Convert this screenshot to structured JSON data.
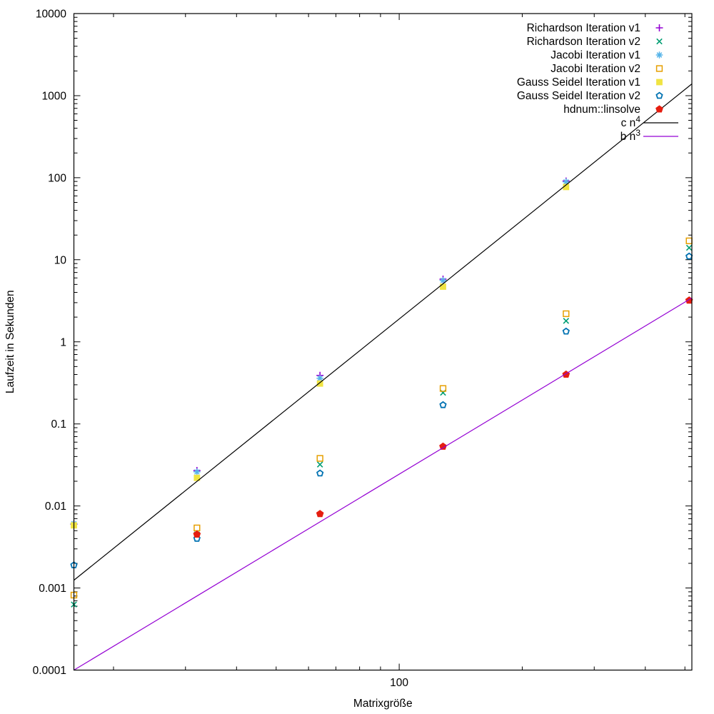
{
  "chart_data": {
    "type": "scatter",
    "title": "",
    "xlabel": "Matrixgröße",
    "ylabel": "Laufzeit in Sekunden",
    "x_scale": "log",
    "y_scale": "log",
    "xlim": [
      16,
      520
    ],
    "ylim": [
      0.0001,
      10000
    ],
    "grid": false,
    "legend_position": "top-right-inside",
    "x_major_ticks": [
      100
    ],
    "x_major_tick_labels": [
      "100"
    ],
    "x_minor_ticks": [
      20,
      30,
      40,
      50,
      60,
      70,
      80,
      90,
      200,
      300,
      400,
      500
    ],
    "y_major_ticks": [
      10000,
      1000,
      100,
      10,
      1,
      0.1,
      0.01,
      0.001,
      0.0001
    ],
    "y_major_tick_labels": [
      "10000",
      "1000",
      "100",
      "10",
      "1",
      "0.1",
      "0.01",
      "0.001",
      "0.0001"
    ],
    "series": [
      {
        "name": "Richardson Iteration v1",
        "marker": "plus",
        "color": "#9400d3",
        "x": [
          16,
          32,
          64,
          128,
          256
        ],
        "y": [
          0.006,
          0.027,
          0.39,
          5.8,
          91
        ]
      },
      {
        "name": "Richardson Iteration v2",
        "marker": "cross",
        "color": "#009e73",
        "x": [
          16,
          32,
          64,
          128,
          256,
          512
        ],
        "y": [
          0.00063,
          0.0045,
          0.032,
          0.24,
          1.8,
          14
        ]
      },
      {
        "name": "Jacobi Iteration v1",
        "marker": "asterisk",
        "color": "#56b4e9",
        "x": [
          16,
          32,
          64,
          128,
          256
        ],
        "y": [
          0.0061,
          0.026,
          0.36,
          5.6,
          89
        ]
      },
      {
        "name": "Jacobi Iteration v2",
        "marker": "open-square",
        "color": "#e69f00",
        "x": [
          16,
          32,
          64,
          128,
          256,
          512
        ],
        "y": [
          0.00082,
          0.0054,
          0.038,
          0.27,
          2.2,
          17
        ]
      },
      {
        "name": "Gauss Seidel Iteration v1",
        "marker": "filled-square",
        "color": "#f0e442",
        "x": [
          16,
          32,
          64,
          128,
          256
        ],
        "y": [
          0.0058,
          0.022,
          0.31,
          4.7,
          77
        ]
      },
      {
        "name": "Gauss Seidel Iteration v2",
        "marker": "open-pentagon",
        "color": "#0072b2",
        "x": [
          16,
          32,
          64,
          128,
          256,
          512
        ],
        "y": [
          0.0019,
          0.004,
          0.025,
          0.17,
          1.34,
          11
        ]
      },
      {
        "name": "hdnum::linsolve",
        "marker": "filled-pentagon",
        "color": "#e51e10",
        "x": [
          32,
          64,
          128,
          256,
          512
        ],
        "y": [
          0.0045,
          0.008,
          0.053,
          0.4,
          3.2
        ]
      }
    ],
    "lines": [
      {
        "name": "c n^4",
        "label_base": "c n",
        "label_exponent": "4",
        "color": "#000000",
        "coefficient": 1.9e-08,
        "power": 4
      },
      {
        "name": "b n^3",
        "label_base": "b n",
        "label_exponent": "3",
        "color": "#9400d3",
        "coefficient": 2.44e-08,
        "power": 3
      }
    ]
  }
}
